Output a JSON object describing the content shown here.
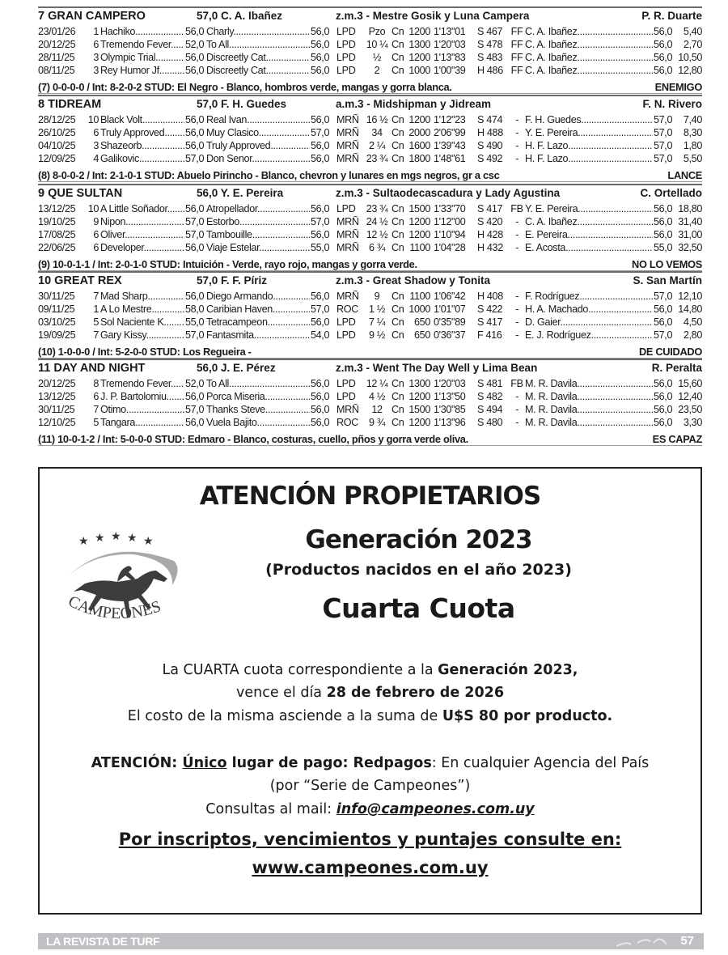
{
  "entries": [
    {
      "name": "7 GRAN CAMPERO",
      "weight_jockey": "57,0 C. A. Ibañez",
      "breeding": "z.m.3 - Mestre Gosik y Luna Campera",
      "trainer": "P. R. Duarte",
      "races": [
        [
          "23/01/26",
          "1",
          "Hachiko",
          "56,0",
          "Charly",
          "56,0",
          "LPD",
          "Pzo",
          "Cn",
          "1200",
          "1'13\"01",
          "S 467",
          "FF",
          "C. A. Ibañez",
          "56,0",
          "5,40"
        ],
        [
          "20/12/25",
          "6",
          "Tremendo Fever..",
          "52,0",
          "To All",
          "56,0",
          "LPD",
          "10 ¼",
          "Cn",
          "1300",
          "1'20\"03",
          "S 478",
          "FF",
          "C. A. Ibañez",
          "56,0",
          "2,70"
        ],
        [
          "28/11/25",
          "3",
          "Olympic Trial",
          "56,0",
          "Discreetly Cat...",
          "56,0",
          "LPD",
          "½",
          "Cn",
          "1200",
          "1'13\"83",
          "S 483",
          "FF",
          "C. A. Ibañez",
          "56,0",
          "10,50"
        ],
        [
          "08/11/25",
          "3",
          "Rey Humor Jf",
          "56,0",
          "Discreetly Cat...",
          "56,0",
          "LPD",
          "2",
          "Cn",
          "1000",
          "1'00\"39",
          "H 486",
          "FF",
          "C. A. Ibañez",
          "56,0",
          "12,80"
        ]
      ],
      "summary": "(7) 0-0-0-0 / Int: 8-2-0-2 STUD: El Negro - Blanco, hombros verde, mangas y gorra blanca.",
      "verdict": "ENEMIGO"
    },
    {
      "name": "8 TIDREAM",
      "weight_jockey": "57,0 F. H. Guedes",
      "breeding": "a.m.3 - Midshipman y Jidream",
      "trainer": "F. N. Rivero",
      "races": [
        [
          "28/12/25",
          "10",
          "Black Volt",
          "56,0",
          "Real Ivan",
          "56,0",
          "MRÑ",
          "16 ½",
          "Cn",
          "1200",
          "1'12\"23",
          "S 474",
          "-",
          "F. H. Guedes",
          "57,0",
          "7,40"
        ],
        [
          "26/10/25",
          "6",
          "Truly Approved",
          "56,0",
          "Muy Clasico",
          "57,0",
          "MRÑ",
          "34",
          "Cn",
          "2000",
          "2'06\"99",
          "H 488",
          "-",
          "Y. E. Pereira",
          "57,0",
          "8,30"
        ],
        [
          "04/10/25",
          "3",
          "Shazeorb",
          "56,0",
          "Truly Approved..",
          "56,0",
          "MRÑ",
          "2 ¼",
          "Cn",
          "1600",
          "1'39\"43",
          "S 490",
          "-",
          "H. F. Lazo",
          "57,0",
          "1,80"
        ],
        [
          "12/09/25",
          "4",
          "Galikovic",
          "57,0",
          "Don Senor",
          "56,0",
          "MRÑ",
          "23 ¾",
          "Cn",
          "1800",
          "1'48\"61",
          "S 492",
          "-",
          "H. F. Lazo",
          "57,0",
          "5,50"
        ]
      ],
      "summary": "(8) 8-0-0-2 / Int: 2-1-0-1 STUD: Abuelo Pirincho - Blanco, chevron y lunares en mgs  negros, gr a csc",
      "verdict": "LANCE"
    },
    {
      "name": "9 QUE SULTAN",
      "weight_jockey": "56,0 Y. E. Pereira",
      "breeding": "z.m.3 - Sultaodecascadura y Lady Agustina",
      "trainer": "C. Ortellado",
      "races": [
        [
          "13/12/25",
          "10",
          "A Little Soñador",
          "56,0",
          "Atropellador",
          "56,0",
          "LPD",
          "23 ¾",
          "Cn",
          "1500",
          "1'33\"70",
          "S 417",
          "FB",
          "Y. E. Pereira",
          "56,0",
          "18,80"
        ],
        [
          "19/10/25",
          "9",
          "Nipon",
          "57,0",
          "Estorbo",
          "57,0",
          "MRÑ",
          "24 ½",
          "Cn",
          "1200",
          "1'12\"00",
          "S 420",
          "-",
          "C. A. Ibañez",
          "56,0",
          "31,40"
        ],
        [
          "17/08/25",
          "6",
          "Oliver",
          "57,0",
          "Tambouille",
          "56,0",
          "MRÑ",
          "12 ½",
          "Cn",
          "1200",
          "1'10\"94",
          "H 428",
          "-",
          "E. Pereira",
          "56,0",
          "31,00"
        ],
        [
          "22/06/25",
          "6",
          "Developer",
          "56,0",
          "Viaje Estelar",
          "55,0",
          "MRÑ",
          "6 ¾",
          "Cn",
          "1100",
          "1'04\"28",
          "H 432",
          "-",
          "E. Acosta",
          "55,0",
          "32,50"
        ]
      ],
      "summary": "(9) 10-0-1-1 / Int: 2-0-1-0 STUD: Intuición - Verde, rayo rojo, mangas y gorra verde.",
      "verdict": "NO LO VEMOS"
    },
    {
      "name": "10 GREAT REX",
      "weight_jockey": "57,0 F. F. Píriz",
      "breeding": "z.m.3 - Great Shadow y Tonita",
      "trainer": "S. San Martín",
      "races": [
        [
          "30/11/25",
          "7",
          "Mad Sharp",
          "56,0",
          "Diego Armando.",
          "56,0",
          "MRÑ",
          "9",
          "Cn",
          "1100",
          "1'06\"42",
          "H 408",
          "-",
          "F. Rodríguez",
          "57,0",
          "12,10"
        ],
        [
          "09/11/25",
          "1",
          "A Lo Mestre",
          "58,0",
          "Caribian Haven..",
          "57,0",
          "ROC",
          "1 ½",
          "Cn",
          "1000",
          "1'01\"07",
          "S 422",
          "-",
          "H. A. Machado",
          "56,0",
          "14,80"
        ],
        [
          "03/10/25",
          "5",
          "Sol Naciente K.",
          "55,0",
          "Tetracampeon",
          "56,0",
          "LPD",
          "7 ¼",
          "Cn",
          "650",
          "0'35\"89",
          "S 417",
          "-",
          "D. Gaier",
          "56,0",
          "4,50"
        ],
        [
          "19/09/25",
          "7",
          "Gary Kissy",
          "57,0",
          "Fantasmita",
          "54,0",
          "LPD",
          "9 ½",
          "Cn",
          "650",
          "0'36\"37",
          "F 416",
          "-",
          "E. J. Rodríguez",
          "57,0",
          "2,80"
        ]
      ],
      "summary": "(10) 1-0-0-0 / Int: 5-2-0-0 STUD: Los Regueira -",
      "verdict": "DE CUIDADO"
    },
    {
      "name": "11 DAY AND NIGHT",
      "weight_jockey": "56,0 J. E. Pérez",
      "breeding": "z.m.3 - Went The Day Well y Lima Bean",
      "trainer": "R. Peralta",
      "races": [
        [
          "20/12/25",
          "8",
          "Tremendo Fever..",
          "52,0",
          "To All",
          "56,0",
          "LPD",
          "12 ¼",
          "Cn",
          "1300",
          "1'20\"03",
          "S 481",
          "FB",
          "M. R. Davila",
          "56,0",
          "15,60"
        ],
        [
          "13/12/25",
          "6",
          "J. P. Bartolomiu...",
          "56,0",
          "Porca Miseria....",
          "56,0",
          "LPD",
          "4 ½",
          "Cn",
          "1200",
          "1'13\"50",
          "S 482",
          "-",
          "M. R. Davila",
          "56,0",
          "12,40"
        ],
        [
          "30/11/25",
          "7",
          "Otimo",
          "57,0",
          "Thanks Steve....",
          "56,0",
          "MRÑ",
          "12",
          "Cn",
          "1500",
          "1'30\"85",
          "S 494",
          "-",
          "M. R. Davila",
          "56,0",
          "23,50"
        ],
        [
          "12/10/25",
          "5",
          "Tangara",
          "56,0",
          "Vuela Bajito",
          "56,0",
          "ROC",
          "9 ¾",
          "Cn",
          "1200",
          "1'13\"96",
          "S 480",
          "-",
          "M. R. Davila",
          "56,0",
          "3,30"
        ]
      ],
      "summary": "(11) 10-0-1-2 / Int: 5-0-0-0 STUD: Edmaro - Blanco, costuras, cuello, pños y gorra verde oliva.",
      "verdict": "ES CAPAZ"
    }
  ],
  "ad": {
    "title": "ATENCIÓN PROPIETARIOS",
    "generation": "Generación 2023",
    "subtitle": "(Productos nacidos en el año 2023)",
    "quota": "Cuarta Cuota",
    "logo_text": "CAMPEONES",
    "line1": {
      "a": "La CUARTA cuota correspondiente a la ",
      "b": "Generación 2023,"
    },
    "line2": {
      "a": "vence el día ",
      "b": "28 de febrero de 2026"
    },
    "line3": {
      "a": "El costo de la misma asciende a la suma de ",
      "b": "U$S 80 por producto."
    },
    "line4": {
      "a": "ATENCIÓN: ",
      "b": "Único",
      "c": " lugar de pago: Redpagos",
      ":": "",
      "d": ": En cualquier Agencia del País"
    },
    "line5": "(por “Serie de Campeones”)",
    "line6": {
      "a": "Consultas al mail: ",
      "b": "info@campeones.com.uy"
    },
    "line7": "Por inscriptos, vencimientos y puntajes consulte en:",
    "line8": "www.campeones.com.uy"
  },
  "footer": {
    "left": "LA REVISTA DE TURF",
    "page": "57",
    "bar_color": "#bfc0c4"
  }
}
